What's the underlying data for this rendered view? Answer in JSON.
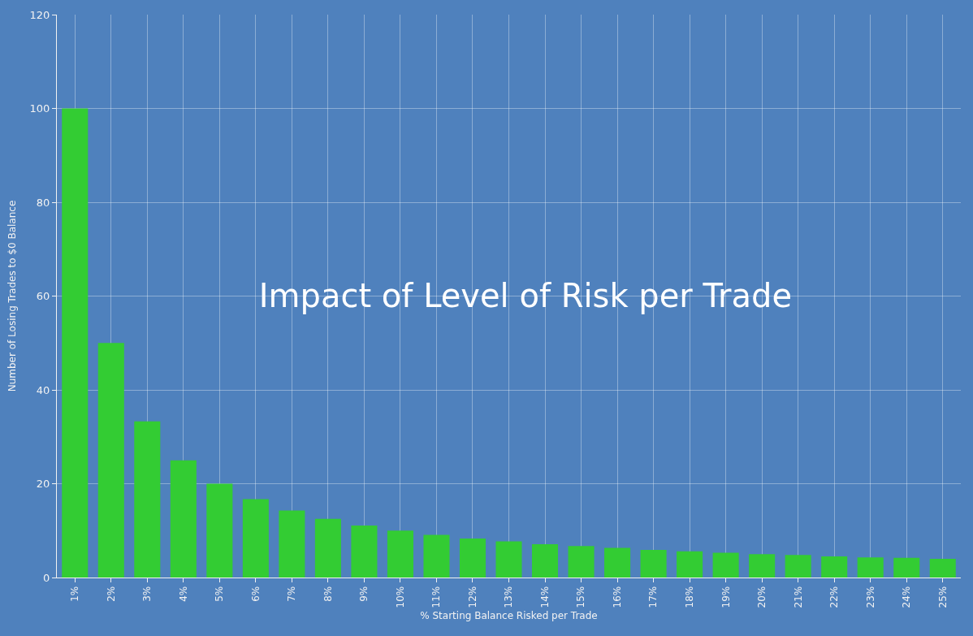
{
  "chart_data": {
    "type": "bar",
    "title": "Impact of Level of Risk per Trade",
    "xlabel": "% Starting Balance Risked per Trade",
    "ylabel": "Number of Losing Trades to $0 Balance",
    "categories": [
      "1%",
      "2%",
      "3%",
      "4%",
      "5%",
      "6%",
      "7%",
      "8%",
      "9%",
      "10%",
      "11%",
      "12%",
      "13%",
      "14%",
      "15%",
      "16%",
      "17%",
      "18%",
      "19%",
      "20%",
      "21%",
      "22%",
      "23%",
      "24%",
      "25%"
    ],
    "values": [
      100,
      50,
      33.3,
      25,
      20,
      16.7,
      14.3,
      12.5,
      11.1,
      10,
      9.1,
      8.3,
      7.7,
      7.1,
      6.7,
      6.3,
      5.9,
      5.6,
      5.3,
      5,
      4.8,
      4.5,
      4.3,
      4.2,
      4
    ],
    "color": "#33cc33",
    "ylim": [
      0,
      120
    ],
    "yticks": [
      0,
      20,
      40,
      60,
      80,
      100,
      120
    ],
    "grid": true
  }
}
